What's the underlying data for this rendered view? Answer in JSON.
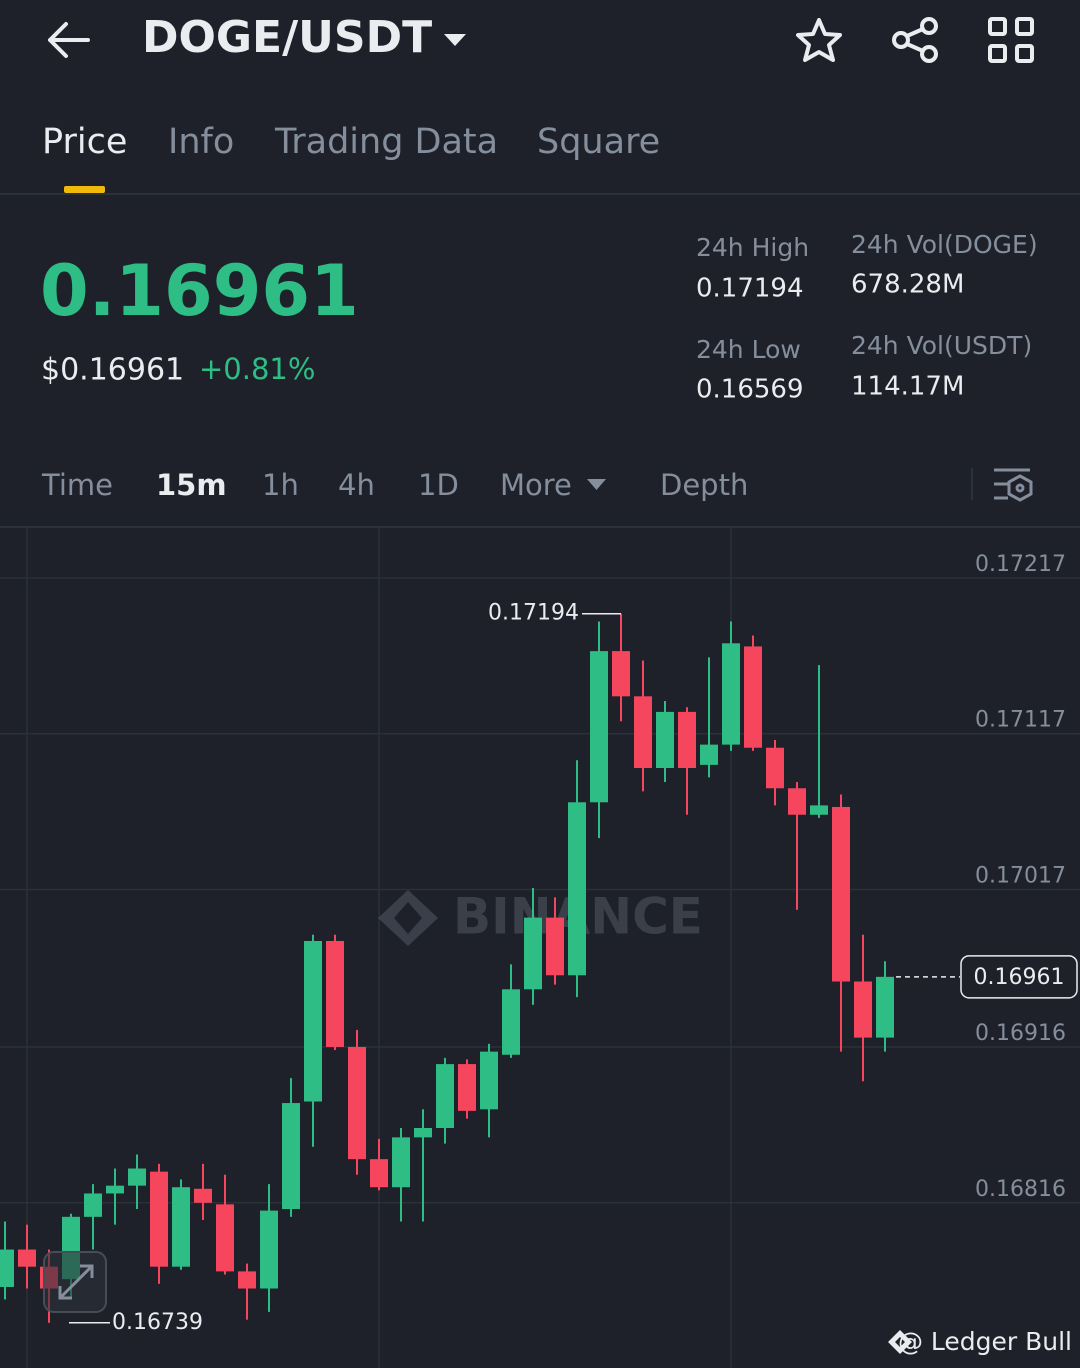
{
  "header": {
    "pair": "DOGE/USDT"
  },
  "tabs": [
    "Price",
    "Info",
    "Trading Data",
    "Square"
  ],
  "price": {
    "last": "0.16961",
    "usd": "$0.16961",
    "change": "+0.81%"
  },
  "stats": [
    {
      "label": "24h High",
      "value": "0.17194"
    },
    {
      "label": "24h Vol(DOGE)",
      "value": "678.28M"
    },
    {
      "label": "24h Low",
      "value": "0.16569"
    },
    {
      "label": "24h Vol(USDT)",
      "value": "114.17M"
    }
  ],
  "intervals": [
    "Time",
    "15m",
    "1h",
    "4h",
    "1D",
    "More",
    "Depth"
  ],
  "watermark": "BINANCE",
  "credit": "@ Ledger Bull",
  "chart_data": {
    "type": "candlestick",
    "up_color": "#2ebd85",
    "down_color": "#f6465d",
    "ylim": [
      0.1671,
      0.17249
    ],
    "yticks": [
      0.17217,
      0.17117,
      0.17017,
      0.16916,
      0.16816
    ],
    "grid": true,
    "high_marker": 0.17194,
    "low_marker": 0.16739,
    "last_price": 0.16961,
    "open": [
      0.16762,
      0.16786,
      0.16775,
      0.16767,
      0.16807,
      0.16822,
      0.16827,
      0.16836,
      0.16775,
      0.16825,
      0.16815,
      0.16772,
      0.16761,
      0.16812,
      0.16881,
      0.16984,
      0.16916,
      0.16844,
      0.16826,
      0.16858,
      0.16864,
      0.16905,
      0.16876,
      0.16911,
      0.16953,
      0.16999,
      0.16962,
      0.17073,
      0.1717,
      0.17141,
      0.17095,
      0.17131,
      0.17097,
      0.1711,
      0.17173,
      0.17108,
      0.17082,
      0.17065,
      0.1707,
      0.16958,
      0.16922
    ],
    "high": [
      0.16804,
      0.16802,
      0.16786,
      0.16809,
      0.16828,
      0.16838,
      0.16847,
      0.16841,
      0.16831,
      0.16841,
      0.16834,
      0.16777,
      0.16828,
      0.16896,
      0.16988,
      0.16988,
      0.16927,
      0.16857,
      0.16864,
      0.16876,
      0.16909,
      0.16908,
      0.16918,
      0.16969,
      0.17018,
      0.17012,
      0.171,
      0.17189,
      0.17194,
      0.17164,
      0.17138,
      0.17134,
      0.17166,
      0.17189,
      0.1718,
      0.17113,
      0.17086,
      0.17161,
      0.17078,
      0.16988,
      0.16971
    ],
    "low": [
      0.16754,
      0.16761,
      0.16739,
      0.16754,
      0.16786,
      0.16802,
      0.16812,
      0.16764,
      0.16773,
      0.16805,
      0.1677,
      0.16741,
      0.16746,
      0.16807,
      0.16852,
      0.16914,
      0.16834,
      0.16824,
      0.16804,
      0.16804,
      0.16854,
      0.1687,
      0.16858,
      0.16909,
      0.16943,
      0.16956,
      0.16948,
      0.1705,
      0.17125,
      0.1708,
      0.17086,
      0.17065,
      0.17089,
      0.17106,
      0.17106,
      0.17071,
      0.17004,
      0.17063,
      0.16913,
      0.16894,
      0.16913
    ],
    "close": [
      0.16786,
      0.16775,
      0.16761,
      0.16807,
      0.16822,
      0.16827,
      0.16838,
      0.16775,
      0.16826,
      0.16816,
      0.16772,
      0.16761,
      0.16811,
      0.1688,
      0.16984,
      0.16916,
      0.16844,
      0.16826,
      0.16858,
      0.16864,
      0.16905,
      0.16875,
      0.16913,
      0.16953,
      0.16999,
      0.16962,
      0.17073,
      0.1717,
      0.17141,
      0.17095,
      0.17131,
      0.17095,
      0.1711,
      0.17175,
      0.17108,
      0.17082,
      0.17065,
      0.17071,
      0.16958,
      0.16922,
      0.16961
    ]
  }
}
